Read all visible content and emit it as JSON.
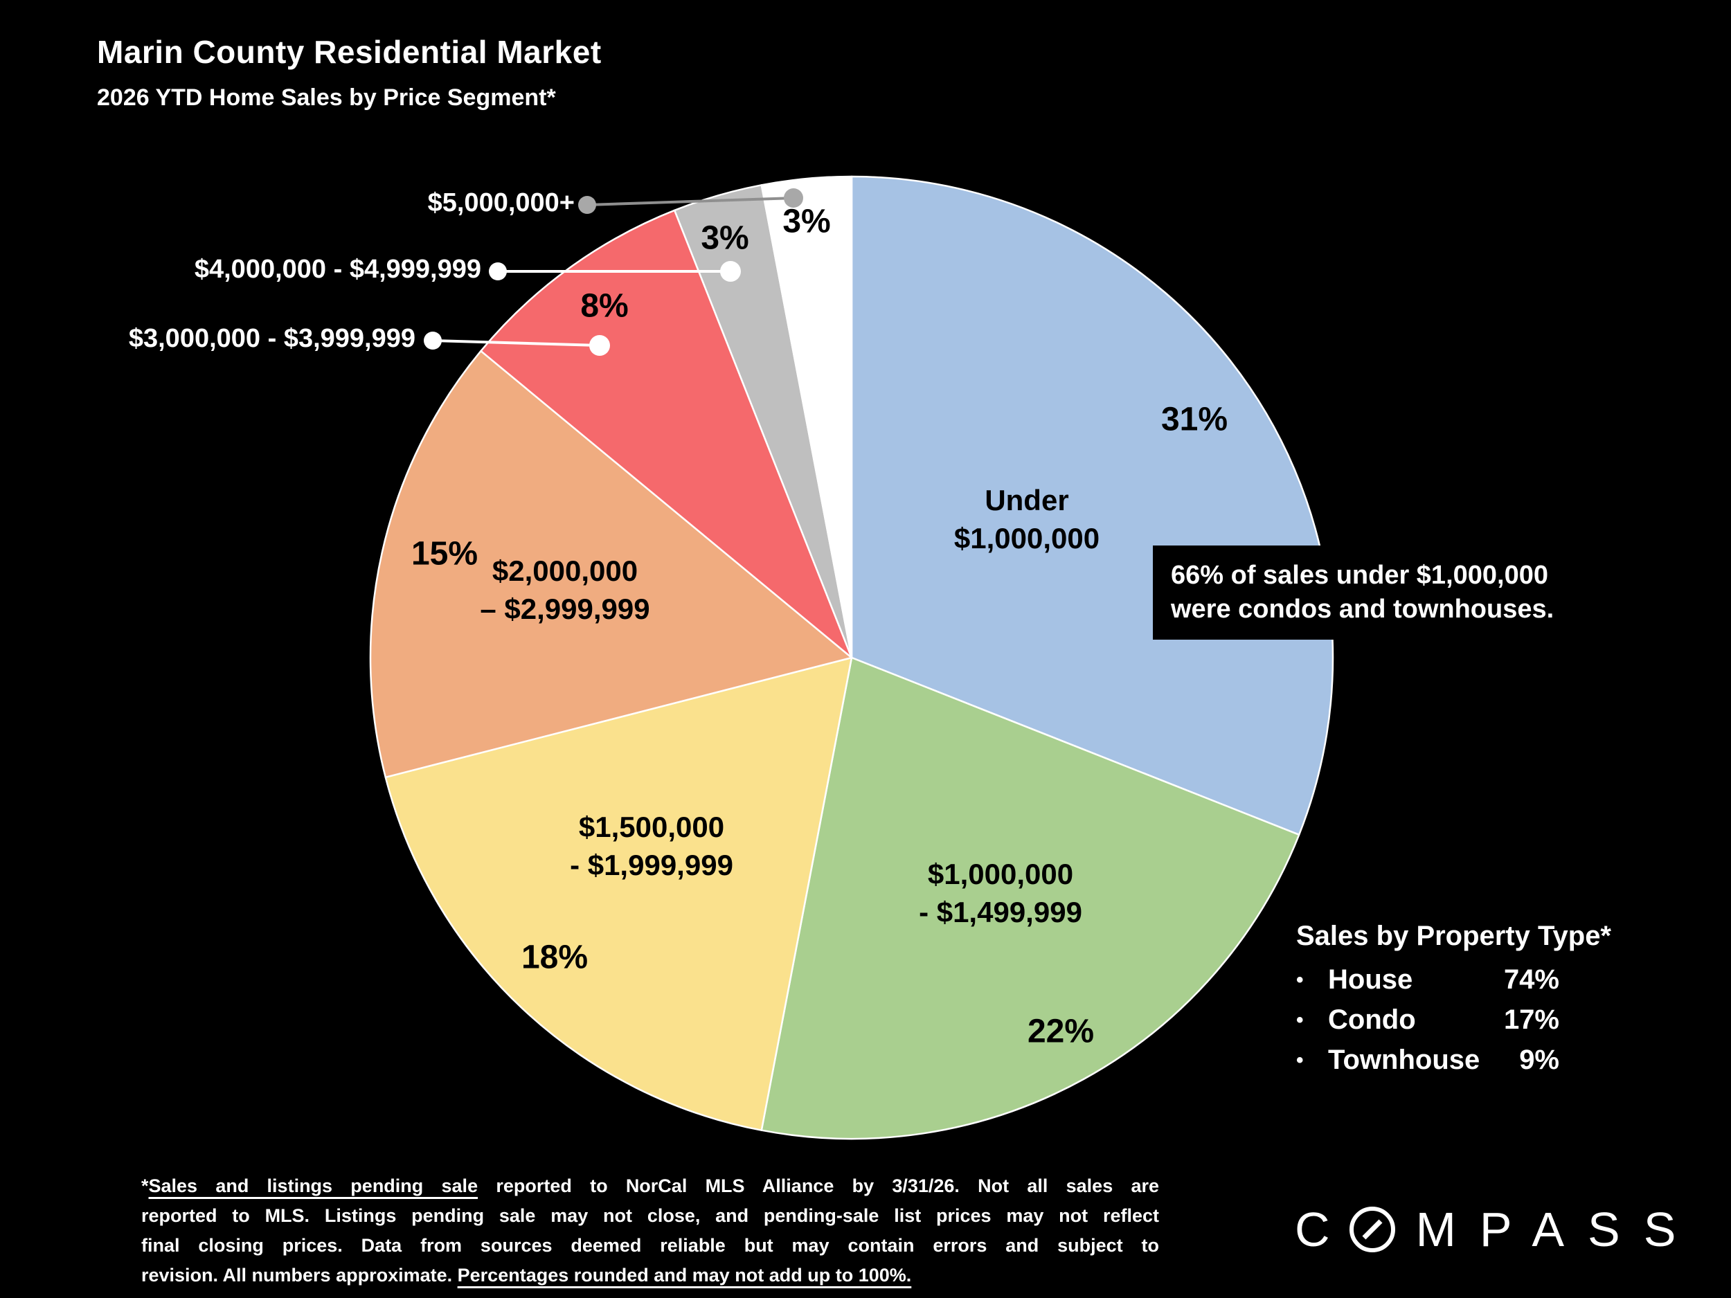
{
  "header": {
    "title": "Marin County Residential Market",
    "subtitle": "2026 YTD Home Sales by Price Segment*"
  },
  "chart_data": {
    "type": "pie",
    "title": "Marin County Residential Market",
    "subtitle": "2026 YTD Home Sales by Price Segment*",
    "unit": "percent of home sales",
    "start_angle": "12 o'clock",
    "direction": "clockwise",
    "segments": [
      {
        "label": "Under $1,000,000",
        "pct": 31,
        "pct_label": "31%",
        "color": "#A6C2E4",
        "name_lines": [
          "Under",
          "$1,000,000"
        ]
      },
      {
        "label": "$1,000,000 - $1,499,999",
        "pct": 22,
        "pct_label": "22%",
        "color": "#A9CF8F",
        "name_lines": [
          "$1,000,000",
          "- $1,499,999"
        ]
      },
      {
        "label": "$1,500,000 - $1,999,999",
        "pct": 18,
        "pct_label": "18%",
        "color": "#FAE18D",
        "name_lines": [
          "$1,500,000",
          "- $1,999,999"
        ]
      },
      {
        "label": "$2,000,000 – $2,999,999",
        "pct": 15,
        "pct_label": "15%",
        "color": "#F0AC80",
        "name_lines": [
          "$2,000,000",
          "– $2,999,999"
        ]
      },
      {
        "label": "$3,000,000 - $3,999,999",
        "pct": 8,
        "pct_label": "8%",
        "color": "#F5696C",
        "name_lines": []
      },
      {
        "label": "$4,000,000 - $4,999,999",
        "pct": 3,
        "pct_label": "3%",
        "color": "#BFBFBF",
        "name_lines": []
      },
      {
        "label": "$5,000,000+",
        "pct": 3,
        "pct_label": "3%",
        "color": "#FFFFFF",
        "name_lines": []
      }
    ],
    "annotation": "66% of sales under $1,000,000 were condos and townhouses."
  },
  "callout": {
    "lines": [
      "66% of sales under $1,000,000",
      "were condos and townhouses."
    ]
  },
  "property_panel": {
    "heading": "Sales by Property Type*",
    "rows": [
      {
        "name": "House",
        "value": "74%"
      },
      {
        "name": "Condo",
        "value": "17%"
      },
      {
        "name": "Townhouse",
        "value": "9%"
      }
    ]
  },
  "footer": {
    "lines": [
      [
        {
          "t": "*",
          "u": false
        },
        {
          "t": "Sales and listings pending sale",
          "u": true
        },
        {
          "t": " reported to NorCal MLS Alliance by 3/31/26. Not all sales are",
          "u": false
        }
      ],
      [
        {
          "t": "reported to MLS. Listings pending sale may not close, and pending-sale list prices may not reflect",
          "u": false
        }
      ],
      [
        {
          "t": "final closing prices. Data from sources deemed reliable but may contain errors and subject to",
          "u": false
        }
      ],
      [
        {
          "t": "revision. All numbers approximate. ",
          "u": false
        },
        {
          "t": "Percentages rounded and may not add up to 100%.",
          "u": true
        }
      ]
    ]
  },
  "logo": {
    "text": "COMPASS",
    "letters_before_o": "C",
    "letters_after_o": "MPASS"
  }
}
